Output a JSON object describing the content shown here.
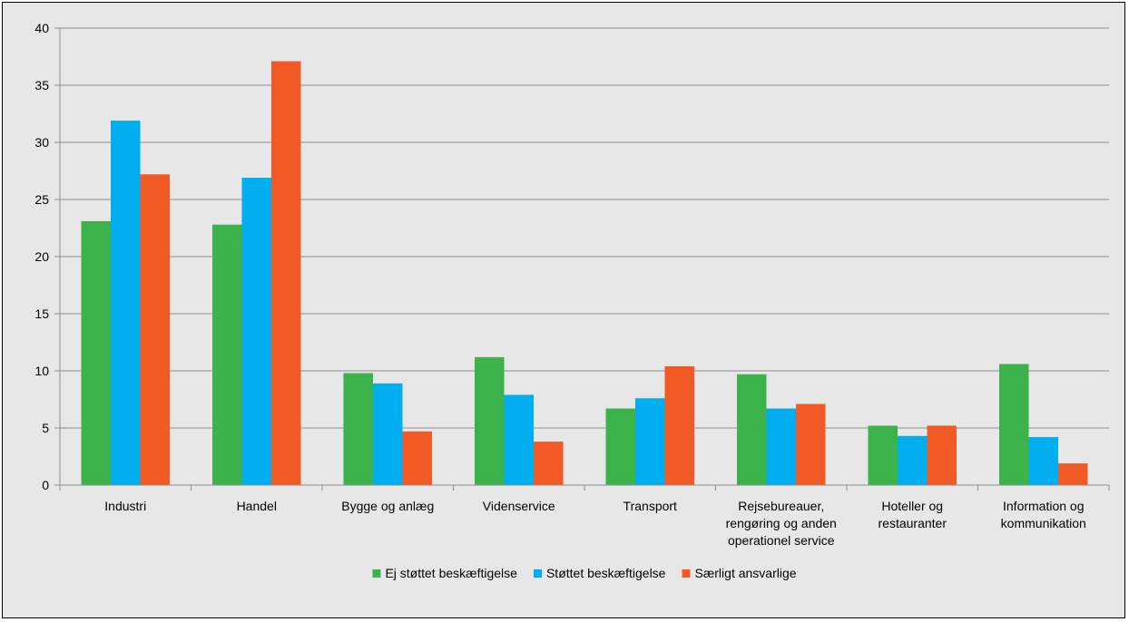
{
  "chart_data": {
    "type": "bar",
    "title": "",
    "xlabel": "",
    "ylabel": "",
    "ylim": [
      0,
      40
    ],
    "yticks": [
      0,
      5,
      10,
      15,
      20,
      25,
      30,
      35,
      40
    ],
    "grid": true,
    "legend_position": "bottom",
    "categories": [
      [
        "Industri"
      ],
      [
        "Handel"
      ],
      [
        "Bygge og anlæg"
      ],
      [
        "Videnservice"
      ],
      [
        "Transport"
      ],
      [
        "Rejsebureauer,",
        "rengøring og anden",
        "operationel service"
      ],
      [
        "Hoteller og",
        "restauranter"
      ],
      [
        "Information og",
        "kommunikation"
      ]
    ],
    "series": [
      {
        "name": "Ej støttet beskæftigelse",
        "color": "#3cb34a",
        "values": [
          23.1,
          22.8,
          9.8,
          11.2,
          6.7,
          9.7,
          5.2,
          10.6
        ]
      },
      {
        "name": "Støttet beskæftigelse",
        "color": "#00adef",
        "values": [
          31.9,
          26.9,
          8.9,
          7.9,
          7.6,
          6.7,
          4.3,
          4.2
        ]
      },
      {
        "name": "Særligt ansvarlige",
        "color": "#f15a24",
        "values": [
          27.2,
          37.1,
          4.7,
          3.8,
          10.4,
          7.1,
          5.2,
          1.9
        ]
      }
    ]
  }
}
